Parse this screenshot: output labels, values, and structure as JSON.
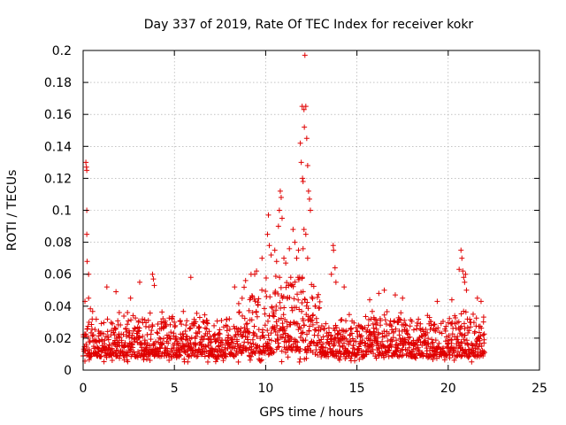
{
  "chart_data": {
    "type": "scatter",
    "title": "Day 337 of 2019, Rate Of TEC Index for receiver kokr",
    "xlabel": "GPS time / hours",
    "ylabel": "ROTI / TECUs",
    "xlim": [
      0,
      25
    ],
    "ylim": [
      0,
      0.2
    ],
    "xticks": [
      0,
      5,
      10,
      15,
      20,
      25
    ],
    "xtick_labels": [
      "0",
      "5",
      "10",
      "15",
      "20",
      "25"
    ],
    "yticks": [
      0,
      0.02,
      0.04,
      0.06,
      0.08,
      0.1,
      0.12,
      0.14,
      0.16,
      0.18,
      0.2
    ],
    "ytick_labels": [
      "0",
      "0.02",
      "0.04",
      "0.06",
      "0.08",
      "0.1",
      "0.12",
      "0.14",
      "0.16",
      "0.18",
      "0.2"
    ],
    "grid": true,
    "marker": "+",
    "series": [
      {
        "name": "ROTI",
        "color": "#e00000",
        "x_range": [
          0,
          22
        ],
        "baseline_band": [
          0.005,
          0.035
        ],
        "points": [
          [
            0.1,
            0.043
          ],
          [
            0.15,
            0.13
          ],
          [
            0.18,
            0.127
          ],
          [
            0.2,
            0.125
          ],
          [
            0.2,
            0.1
          ],
          [
            0.2,
            0.085
          ],
          [
            0.22,
            0.068
          ],
          [
            0.3,
            0.06
          ],
          [
            0.3,
            0.045
          ],
          [
            1.3,
            0.052
          ],
          [
            1.8,
            0.049
          ],
          [
            2.6,
            0.045
          ],
          [
            3.1,
            0.055
          ],
          [
            3.8,
            0.06
          ],
          [
            3.85,
            0.057
          ],
          [
            3.9,
            0.053
          ],
          [
            5.9,
            0.058
          ],
          [
            8.3,
            0.052
          ],
          [
            8.9,
            0.056
          ],
          [
            9.2,
            0.06
          ],
          [
            9.4,
            0.06
          ],
          [
            9.5,
            0.062
          ],
          [
            9.8,
            0.07
          ],
          [
            10.1,
            0.085
          ],
          [
            10.15,
            0.097
          ],
          [
            10.2,
            0.078
          ],
          [
            10.3,
            0.072
          ],
          [
            10.5,
            0.075
          ],
          [
            10.6,
            0.068
          ],
          [
            10.7,
            0.09
          ],
          [
            10.75,
            0.1
          ],
          [
            10.8,
            0.112
          ],
          [
            10.85,
            0.108
          ],
          [
            10.9,
            0.095
          ],
          [
            11.0,
            0.07
          ],
          [
            11.1,
            0.067
          ],
          [
            11.3,
            0.076
          ],
          [
            11.5,
            0.088
          ],
          [
            11.6,
            0.08
          ],
          [
            11.7,
            0.07
          ],
          [
            11.8,
            0.075
          ],
          [
            11.9,
            0.142
          ],
          [
            11.95,
            0.13
          ],
          [
            12.0,
            0.165
          ],
          [
            12.02,
            0.12
          ],
          [
            12.05,
            0.118
          ],
          [
            12.1,
            0.163
          ],
          [
            12.12,
            0.152
          ],
          [
            12.15,
            0.197
          ],
          [
            12.2,
            0.165
          ],
          [
            12.25,
            0.145
          ],
          [
            12.3,
            0.128
          ],
          [
            12.35,
            0.112
          ],
          [
            12.4,
            0.107
          ],
          [
            12.45,
            0.1
          ],
          [
            12.1,
            0.088
          ],
          [
            12.2,
            0.085
          ],
          [
            12.05,
            0.076
          ],
          [
            12.3,
            0.07
          ],
          [
            13.6,
            0.06
          ],
          [
            13.7,
            0.078
          ],
          [
            13.72,
            0.075
          ],
          [
            13.8,
            0.064
          ],
          [
            13.85,
            0.055
          ],
          [
            14.3,
            0.052
          ],
          [
            15.7,
            0.044
          ],
          [
            16.2,
            0.048
          ],
          [
            16.5,
            0.05
          ],
          [
            17.1,
            0.047
          ],
          [
            17.5,
            0.045
          ],
          [
            19.4,
            0.043
          ],
          [
            20.2,
            0.044
          ],
          [
            20.6,
            0.063
          ],
          [
            20.7,
            0.075
          ],
          [
            20.75,
            0.07
          ],
          [
            20.8,
            0.062
          ],
          [
            20.85,
            0.058
          ],
          [
            20.9,
            0.055
          ],
          [
            20.95,
            0.06
          ],
          [
            21.0,
            0.05
          ],
          [
            21.6,
            0.045
          ],
          [
            21.8,
            0.043
          ]
        ]
      }
    ]
  }
}
